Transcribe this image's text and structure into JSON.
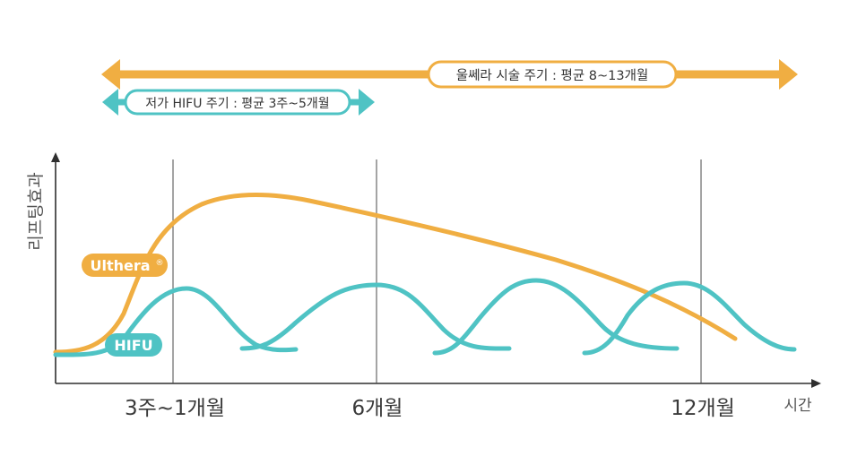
{
  "colors": {
    "ulthera": "#F0AE42",
    "hifu": "#4FC3C4",
    "axis": "#2f2f2f",
    "gridline": "#4a4a4a",
    "text": "#3a3a3a",
    "background": "#ffffff"
  },
  "durations": {
    "ulthera": {
      "label": "울쎄라 시술 주기 : 평균 8~13개월"
    },
    "hifu": {
      "label": "저가 HIFU 주기 : 평균 3주~5개월"
    }
  },
  "axes": {
    "y_label": "리프팅효과",
    "x_label": "시간",
    "x_ticks": [
      "3주~1개월",
      "6개월",
      "12개월"
    ]
  },
  "series_labels": {
    "ulthera": "Ulthera",
    "ulthera_mark": "®",
    "hifu": "HIFU"
  }
}
